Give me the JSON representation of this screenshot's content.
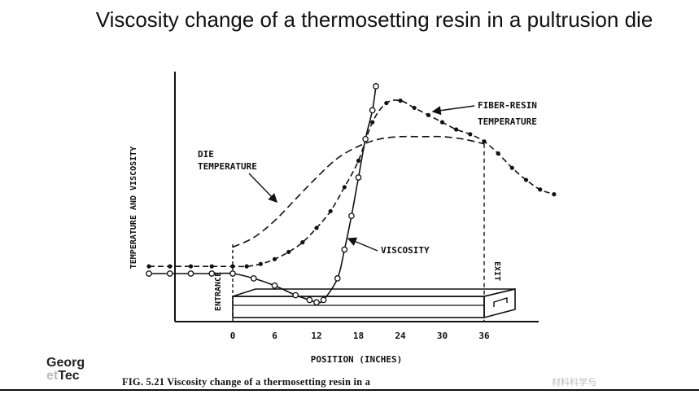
{
  "slide": {
    "title": "Viscosity change of a thermosetting resin in a pultrusion die",
    "logo_line1": "Georg",
    "logo_line2a": "et",
    "logo_line2b": "Tec",
    "caption": "FIG. 5.21  Viscosity change of a thermosetting resin in a",
    "watermark": "材料科学与"
  },
  "chart_data": {
    "type": "line",
    "title": "FIG. 5.21 Viscosity change of a thermosetting resin in a",
    "xlabel": "POSITION (INCHES)",
    "ylabel": "TEMPERATURE AND VISCOSITY",
    "xlim": [
      -12,
      48
    ],
    "ylim": [
      0,
      100
    ],
    "x_ticks": [
      0,
      6,
      12,
      18,
      24,
      30,
      36
    ],
    "grid": false,
    "annotations": {
      "die_temperature": "DIE TEMPERATURE",
      "fiber_resin": "FIBER-RESIN TEMPERATURE",
      "viscosity": "VISCOSITY",
      "entrance": "ENTRANCE",
      "exit": "EXIT"
    },
    "die": {
      "start": 0,
      "end": 36
    },
    "series": [
      {
        "name": "DIE TEMPERATURE",
        "style": "dashed",
        "x": [
          0,
          3,
          6,
          9,
          12,
          15,
          18,
          21,
          24,
          27,
          30,
          33,
          36
        ],
        "y": [
          31,
          35,
          42,
          51,
          60,
          68,
          73,
          76,
          77,
          77,
          77,
          76,
          74
        ]
      },
      {
        "name": "FIBER-RESIN TEMPERATURE",
        "style": "dash-dot-marker",
        "x": [
          -12,
          -9,
          -6,
          -3,
          0,
          2,
          4,
          6,
          8,
          10,
          12,
          14,
          16,
          18,
          20,
          22,
          24,
          26,
          28,
          30,
          32,
          34,
          36,
          38,
          40,
          42,
          44,
          46
        ],
        "y": [
          23,
          23,
          23,
          23,
          23,
          23,
          24,
          26,
          29,
          33,
          39,
          46,
          56,
          67,
          83,
          91,
          92,
          89,
          86,
          83,
          80,
          78,
          75,
          70,
          64,
          59,
          55,
          53
        ]
      },
      {
        "name": "VISCOSITY",
        "style": "open-circle-marker",
        "x": [
          -12,
          -9,
          -6,
          -3,
          0,
          3,
          6,
          9,
          11,
          12,
          13,
          15,
          16,
          17,
          18,
          19,
          20,
          20.5
        ],
        "y": [
          20,
          20,
          20,
          20,
          20,
          18,
          15,
          11,
          9,
          8,
          9,
          18,
          30,
          44,
          60,
          76,
          88,
          98
        ]
      }
    ]
  }
}
